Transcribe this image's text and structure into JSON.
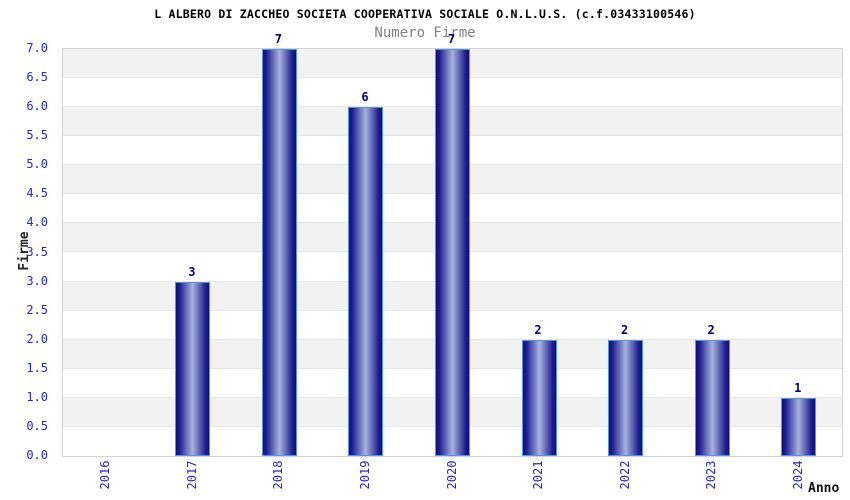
{
  "header": {
    "title": "L ALBERO DI ZACCHEO SOCIETA COOPERATIVA SOCIALE O.N.L.U.S. (c.f.03433100546)",
    "subtitle": "Numero Firme"
  },
  "chart_data": {
    "type": "bar",
    "title": "L ALBERO DI ZACCHEO SOCIETA COOPERATIVA SOCIALE O.N.L.U.S. (c.f.03433100546)",
    "subtitle": "Numero Firme",
    "categories": [
      "2016",
      "2017",
      "2018",
      "2019",
      "2020",
      "2021",
      "2022",
      "2023",
      "2024"
    ],
    "values": [
      0,
      3,
      7,
      6,
      7,
      2,
      2,
      2,
      1
    ],
    "xlabel": "Anno",
    "ylabel": "Firme",
    "ylim": [
      0,
      7
    ],
    "ytick_step": 0.5,
    "ytick_labels": [
      "0.0",
      "0.5",
      "1.0",
      "1.5",
      "2.0",
      "2.5",
      "3.0",
      "3.5",
      "4.0",
      "4.5",
      "5.0",
      "5.5",
      "6.0",
      "6.5",
      "7.0"
    ],
    "bar_value_labels": [
      "",
      "3",
      "7",
      "6",
      "7",
      "2",
      "2",
      "2",
      "1"
    ],
    "legend": null,
    "grid": "horizontal-bands-alternating",
    "layout": {
      "band_count": 14,
      "bands_start_gray_at_top": true
    },
    "colors": {
      "tick_label": "#2626cc",
      "bar_edge_dark": "#10107c",
      "bar_center_light": "#a9b3dc",
      "bar_border": "#4f97e8",
      "bar_value_label": "#00007d",
      "band_gray": "#f2f2f2",
      "band_white": "#ffffff",
      "plot_border": "#d2d2d2",
      "title_color": "#000000",
      "subtitle_color": "#808080",
      "axis_title_color": "#222222",
      "background": "#ffffff"
    }
  }
}
